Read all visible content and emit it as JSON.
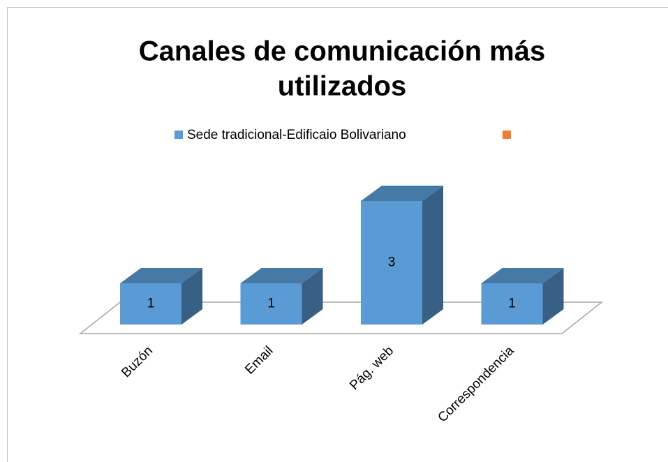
{
  "chart_data": {
    "type": "bar3d",
    "title": "Canales de comunicación más utilizados",
    "categories": [
      "Buzón",
      "Email",
      "Pág. web",
      "Correspondencia"
    ],
    "series": [
      {
        "name": "Sede tradicional-Edificaio Bolivariano",
        "color": "#5b9bd5",
        "values": [
          1,
          1,
          3,
          1
        ]
      },
      {
        "name": null,
        "color": "#ed7d31",
        "values": [
          null,
          null,
          null,
          null
        ]
      }
    ],
    "ylim": [
      0,
      4
    ],
    "legend": "top"
  }
}
